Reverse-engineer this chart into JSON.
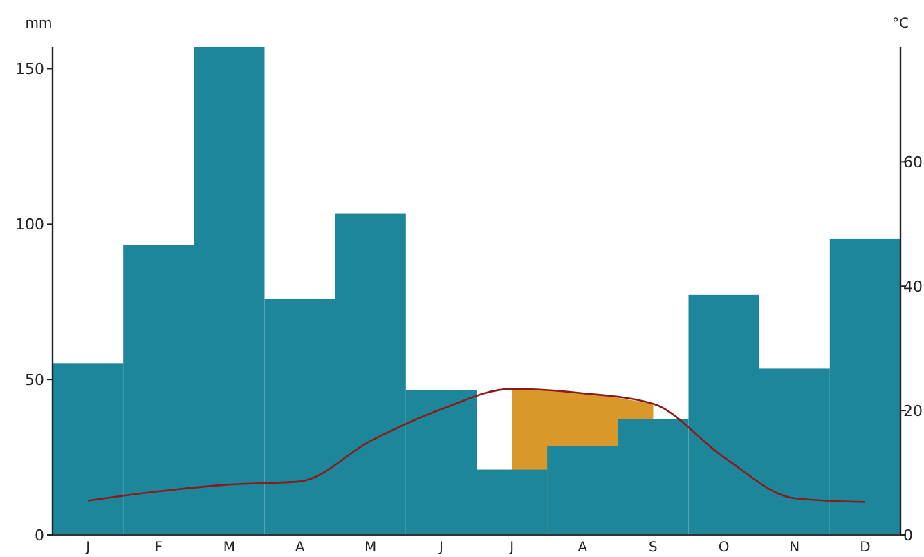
{
  "chart_data": {
    "type": "bar",
    "ylabel": "mm",
    "y2label": "°C",
    "categories": [
      "J",
      "F",
      "M",
      "A",
      "M",
      "J",
      "J",
      "A",
      "S",
      "O",
      "N",
      "D"
    ],
    "series": [
      {
        "type": "bar",
        "color": "#1e869a",
        "values": [
          55.3,
          93.4,
          157,
          75.9,
          103.5,
          46.5,
          21,
          28.5,
          37.3,
          77.2,
          53.5,
          95.2
        ]
      },
      {
        "type": "line",
        "axis": "y2",
        "color": "#8b1a1a",
        "values": [
          5.5,
          7.0,
          8.1,
          8.6,
          15.1,
          20.2,
          23.5,
          22.8,
          21.1,
          12.5,
          5.9,
          5.3
        ]
      },
      {
        "type": "area",
        "axis": "y2",
        "color": "#d9992a",
        "values": [
          null,
          null,
          null,
          null,
          null,
          null,
          23.5,
          22.8,
          21.1,
          null,
          null,
          null
        ]
      }
    ],
    "ylim": [
      0,
      157
    ],
    "yticks": [
      0,
      50,
      100,
      150
    ],
    "y2lim": [
      0,
      78.5
    ],
    "y2ticks": [
      0,
      20,
      40,
      60
    ],
    "grid": false,
    "legend": false
  }
}
